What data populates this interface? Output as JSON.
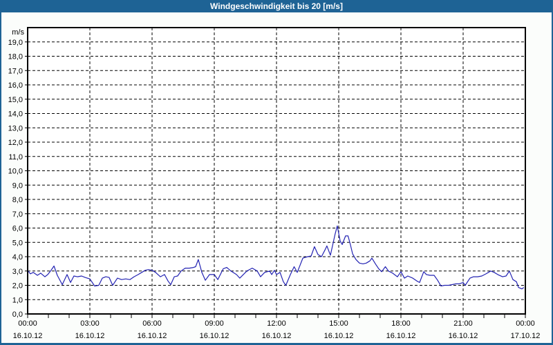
{
  "window": {
    "title": "Windgeschwindigkeit bis 20 [m/s]"
  },
  "colors": {
    "titlebar_bg": "#1E6395",
    "titlebar_text": "#FFFFFF",
    "frame": "#1E6395",
    "background": "#FBFDFB",
    "plot_background": "#FFFFFF",
    "plot_border": "#000000",
    "grid": "#000000",
    "tick": "#000000",
    "label_text": "#000000",
    "line": "#2222B2"
  },
  "chart_data": {
    "type": "line",
    "title": "Windgeschwindigkeit bis 20 [m/s]",
    "ylabel": "m/s",
    "y_unit_label": "m/s",
    "ylim": [
      0,
      20
    ],
    "xlim_hours": [
      0,
      24
    ],
    "x_minor_step_hours": 1,
    "x_major_step_hours": 3,
    "grid": "dashed",
    "legend": "none",
    "y_ticks": [
      {
        "v": 19,
        "label": "19,0"
      },
      {
        "v": 18,
        "label": "18,0"
      },
      {
        "v": 17,
        "label": "17,0"
      },
      {
        "v": 16,
        "label": "16,0"
      },
      {
        "v": 15,
        "label": "15,0"
      },
      {
        "v": 14,
        "label": "14,0"
      },
      {
        "v": 13,
        "label": "13,0"
      },
      {
        "v": 12,
        "label": "12,0"
      },
      {
        "v": 11,
        "label": "11,0"
      },
      {
        "v": 10,
        "label": "10,0"
      },
      {
        "v": 9,
        "label": "9,0"
      },
      {
        "v": 8,
        "label": "8,0"
      },
      {
        "v": 7,
        "label": "7,0"
      },
      {
        "v": 6,
        "label": "6,0"
      },
      {
        "v": 5,
        "label": "5,0"
      },
      {
        "v": 4,
        "label": "4,0"
      },
      {
        "v": 3,
        "label": "3,0"
      },
      {
        "v": 2,
        "label": "2,0"
      },
      {
        "v": 1,
        "label": "1,0"
      },
      {
        "v": 0,
        "label": "0,0"
      }
    ],
    "x_ticks": [
      {
        "h": 0,
        "time": "00:00",
        "date": "16.10.12"
      },
      {
        "h": 3,
        "time": "03:00",
        "date": "16.10.12"
      },
      {
        "h": 6,
        "time": "06:00",
        "date": "16.10.12"
      },
      {
        "h": 9,
        "time": "09:00",
        "date": "16.10.12"
      },
      {
        "h": 12,
        "time": "12:00",
        "date": "16.10.12"
      },
      {
        "h": 15,
        "time": "15:00",
        "date": "16.10.12"
      },
      {
        "h": 18,
        "time": "18:00",
        "date": "16.10.12"
      },
      {
        "h": 21,
        "time": "21:00",
        "date": "16.10.12"
      },
      {
        "h": 24,
        "time": "00:00",
        "date": "17.10.12"
      }
    ],
    "series": [
      {
        "name": "Windgeschwindigkeit",
        "color": "#2222B2",
        "points": [
          [
            0.0,
            3.05
          ],
          [
            0.13,
            2.8
          ],
          [
            0.27,
            2.9
          ],
          [
            0.47,
            2.7
          ],
          [
            0.63,
            2.85
          ],
          [
            0.83,
            2.6
          ],
          [
            0.97,
            2.75
          ],
          [
            1.13,
            3.05
          ],
          [
            1.27,
            3.35
          ],
          [
            1.43,
            2.7
          ],
          [
            1.67,
            2.05
          ],
          [
            1.9,
            2.75
          ],
          [
            2.07,
            2.2
          ],
          [
            2.23,
            2.65
          ],
          [
            2.4,
            2.6
          ],
          [
            2.6,
            2.65
          ],
          [
            2.77,
            2.55
          ],
          [
            3.0,
            2.45
          ],
          [
            3.23,
            1.95
          ],
          [
            3.43,
            2.0
          ],
          [
            3.6,
            2.5
          ],
          [
            3.77,
            2.6
          ],
          [
            3.93,
            2.55
          ],
          [
            4.1,
            2.0
          ],
          [
            4.33,
            2.5
          ],
          [
            4.53,
            2.4
          ],
          [
            4.73,
            2.45
          ],
          [
            4.93,
            2.4
          ],
          [
            5.13,
            2.6
          ],
          [
            5.33,
            2.75
          ],
          [
            5.5,
            2.9
          ],
          [
            5.67,
            3.05
          ],
          [
            5.83,
            3.1
          ],
          [
            6.0,
            3.05
          ],
          [
            6.17,
            2.9
          ],
          [
            6.4,
            2.6
          ],
          [
            6.6,
            2.75
          ],
          [
            6.77,
            2.3
          ],
          [
            6.9,
            2.05
          ],
          [
            7.07,
            2.6
          ],
          [
            7.23,
            2.65
          ],
          [
            7.4,
            3.0
          ],
          [
            7.6,
            3.2
          ],
          [
            7.8,
            3.2
          ],
          [
            8.0,
            3.25
          ],
          [
            8.1,
            3.3
          ],
          [
            8.23,
            3.8
          ],
          [
            8.4,
            2.9
          ],
          [
            8.57,
            2.35
          ],
          [
            8.77,
            2.75
          ],
          [
            9.0,
            2.75
          ],
          [
            9.17,
            2.4
          ],
          [
            9.43,
            3.15
          ],
          [
            9.6,
            3.25
          ],
          [
            9.8,
            3.0
          ],
          [
            10.07,
            2.75
          ],
          [
            10.23,
            2.5
          ],
          [
            10.57,
            3.0
          ],
          [
            10.83,
            3.2
          ],
          [
            11.07,
            3.0
          ],
          [
            11.23,
            2.6
          ],
          [
            11.43,
            2.9
          ],
          [
            11.67,
            3.0
          ],
          [
            11.77,
            2.75
          ],
          [
            11.9,
            3.05
          ],
          [
            12.0,
            2.75
          ],
          [
            12.17,
            2.9
          ],
          [
            12.33,
            2.25
          ],
          [
            12.45,
            2.0
          ],
          [
            12.67,
            2.75
          ],
          [
            12.85,
            3.3
          ],
          [
            13.0,
            2.9
          ],
          [
            13.27,
            3.9
          ],
          [
            13.5,
            4.0
          ],
          [
            13.67,
            4.05
          ],
          [
            13.83,
            4.7
          ],
          [
            14.0,
            4.15
          ],
          [
            14.17,
            4.0
          ],
          [
            14.33,
            4.45
          ],
          [
            14.43,
            4.75
          ],
          [
            14.6,
            4.1
          ],
          [
            14.83,
            5.6
          ],
          [
            14.93,
            6.15
          ],
          [
            15.07,
            5.1
          ],
          [
            15.17,
            4.85
          ],
          [
            15.33,
            5.45
          ],
          [
            15.45,
            5.45
          ],
          [
            15.57,
            4.8
          ],
          [
            15.67,
            4.2
          ],
          [
            15.83,
            3.8
          ],
          [
            16.0,
            3.55
          ],
          [
            16.17,
            3.5
          ],
          [
            16.33,
            3.55
          ],
          [
            16.5,
            3.7
          ],
          [
            16.6,
            3.9
          ],
          [
            16.77,
            3.5
          ],
          [
            16.93,
            3.15
          ],
          [
            17.07,
            2.95
          ],
          [
            17.25,
            3.3
          ],
          [
            17.4,
            3.0
          ],
          [
            17.6,
            2.85
          ],
          [
            17.83,
            2.6
          ],
          [
            18.0,
            2.95
          ],
          [
            18.17,
            2.5
          ],
          [
            18.33,
            2.65
          ],
          [
            18.57,
            2.5
          ],
          [
            18.77,
            2.3
          ],
          [
            18.9,
            2.2
          ],
          [
            19.1,
            2.95
          ],
          [
            19.23,
            2.75
          ],
          [
            19.4,
            2.7
          ],
          [
            19.6,
            2.7
          ],
          [
            19.77,
            2.35
          ],
          [
            19.93,
            1.95
          ],
          [
            20.1,
            2.0
          ],
          [
            20.3,
            2.0
          ],
          [
            20.47,
            2.05
          ],
          [
            20.63,
            2.1
          ],
          [
            20.8,
            2.1
          ],
          [
            21.0,
            2.2
          ],
          [
            21.1,
            2.0
          ],
          [
            21.33,
            2.5
          ],
          [
            21.5,
            2.6
          ],
          [
            21.7,
            2.6
          ],
          [
            21.9,
            2.65
          ],
          [
            22.1,
            2.8
          ],
          [
            22.33,
            3.0
          ],
          [
            22.5,
            2.9
          ],
          [
            22.67,
            2.75
          ],
          [
            22.9,
            2.6
          ],
          [
            23.07,
            2.65
          ],
          [
            23.23,
            3.0
          ],
          [
            23.4,
            2.4
          ],
          [
            23.57,
            2.25
          ],
          [
            23.67,
            1.85
          ],
          [
            23.83,
            1.75
          ],
          [
            23.93,
            1.85
          ]
        ]
      }
    ]
  }
}
